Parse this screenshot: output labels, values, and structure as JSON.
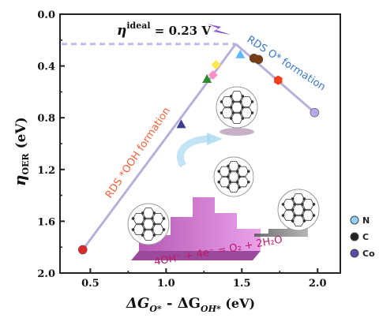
{
  "chart_data": {
    "type": "scatter",
    "xlim": [
      0.3,
      2.15
    ],
    "ylim": [
      2.0,
      0.0
    ],
    "y_inverted": true,
    "xticks": [
      "0.5",
      "1.0",
      "1.5",
      "2.0"
    ],
    "yticks": [
      "0.0",
      "0.4",
      "0.8",
      "1.2",
      "1.6",
      "2.0"
    ],
    "xlabel_main": "ΔG",
    "xlabel_sub1": "O*",
    "xlabel_mid": " - ΔG",
    "xlabel_sub2": "OH*",
    "xlabel_unit": " (eV)",
    "ylabel_main": "η",
    "ylabel_sub": "OER",
    "ylabel_unit": " (eV)",
    "ideal_label_main": "η",
    "ideal_label_sup": "ideal",
    "ideal_label_value": " = 0.23 V",
    "ideal_y": 0.23,
    "volcano_apex": {
      "x": 1.46,
      "y": 0.23
    },
    "left_branch_label": "RDS *OOH formation",
    "right_branch_label": "RDS O* formation",
    "equation": "4OH⁻ + 4e⁻ = O₂ + 2H₂O",
    "points": [
      {
        "x": 0.45,
        "y": 1.82,
        "shape": "circle",
        "color": "#e02a2a"
      },
      {
        "x": 1.1,
        "y": 0.85,
        "shape": "triangle",
        "color": "#3c3c8c"
      },
      {
        "x": 1.27,
        "y": 0.5,
        "shape": "triangle",
        "color": "#2e8b2e"
      },
      {
        "x": 1.31,
        "y": 0.47,
        "shape": "diamond",
        "color": "#ff8fc8"
      },
      {
        "x": 1.33,
        "y": 0.39,
        "shape": "diamond",
        "color": "#ffe84a"
      },
      {
        "x": 1.49,
        "y": 0.31,
        "shape": "triangle",
        "color": "#60b8ff"
      },
      {
        "x": 1.58,
        "y": 0.34,
        "shape": "circle",
        "color": "#7a3b10"
      },
      {
        "x": 1.61,
        "y": 0.35,
        "shape": "circle",
        "color": "#7a3b10"
      },
      {
        "x": 1.74,
        "y": 0.51,
        "shape": "hexagon",
        "color": "#f04020"
      },
      {
        "x": 1.98,
        "y": 0.76,
        "shape": "circle",
        "color": "#b8a8e8"
      }
    ],
    "legend": [
      {
        "label": "N",
        "color": "#8fd0ff"
      },
      {
        "label": "C",
        "color": "#222222"
      },
      {
        "label": "Co",
        "color": "#5a4aa8"
      }
    ]
  }
}
